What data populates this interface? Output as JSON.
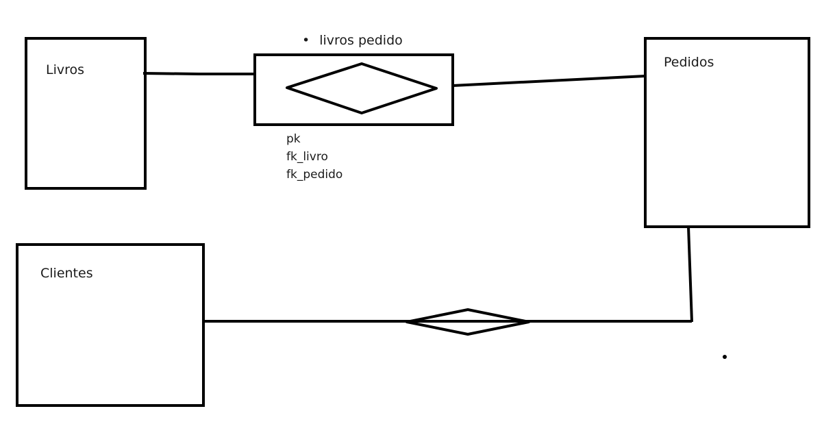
{
  "entities": {
    "livros": "Livros",
    "pedidos": "Pedidos",
    "clientes": "Clientes"
  },
  "relationship": {
    "bullet": "•",
    "label": "livros pedido",
    "attributes": [
      "pk",
      "fk_livro",
      "fk_pedido"
    ]
  },
  "colors": {
    "stroke": "#000000",
    "text": "#1a1a1a",
    "background": "#ffffff"
  }
}
